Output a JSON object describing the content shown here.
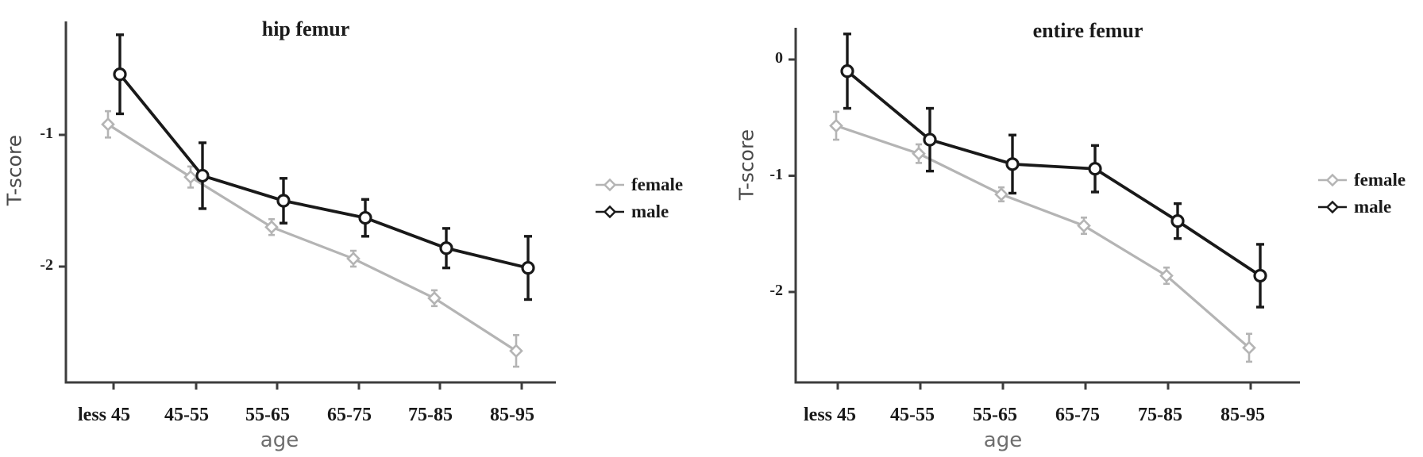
{
  "chart_data": [
    {
      "type": "line",
      "title": "hip femur",
      "xlabel": "age",
      "ylabel": "T-score",
      "categories": [
        "less 45",
        "45-55",
        "55-65",
        "65-75",
        "75-85",
        "85-95"
      ],
      "y_ticks": [
        {
          "label": "-1",
          "value": -1
        },
        {
          "label": "-2",
          "value": -2
        }
      ],
      "ylim": [
        -2.9,
        -0.1
      ],
      "grid": false,
      "legend_position": "right",
      "legend": [
        "female",
        "male"
      ],
      "error_bars": true,
      "series": [
        {
          "name": "female",
          "color": "#b4b4b4",
          "marker": "diamond",
          "values": [
            -0.92,
            -1.32,
            -1.7,
            -1.94,
            -2.24,
            -2.64
          ],
          "errors": [
            0.1,
            0.08,
            0.06,
            0.06,
            0.06,
            0.12
          ]
        },
        {
          "name": "male",
          "color": "#191919",
          "marker": "circle",
          "values": [
            -0.54,
            -1.31,
            -1.5,
            -1.63,
            -1.86,
            -2.01
          ],
          "errors": [
            0.3,
            0.25,
            0.17,
            0.14,
            0.15,
            0.24
          ]
        }
      ]
    },
    {
      "type": "line",
      "title": "entire femur",
      "xlabel": "age",
      "ylabel": "T-score",
      "categories": [
        "less 45",
        "45-55",
        "55-65",
        "65-75",
        "75-85",
        "85-95"
      ],
      "y_ticks": [
        {
          "label": "0",
          "value": 0
        },
        {
          "label": "-1",
          "value": -1
        },
        {
          "label": "-2",
          "value": -2
        }
      ],
      "ylim": [
        -2.8,
        0.45
      ],
      "grid": false,
      "legend_position": "right",
      "legend": [
        "female",
        "male"
      ],
      "error_bars": true,
      "series": [
        {
          "name": "female",
          "color": "#b4b4b4",
          "marker": "diamond",
          "values": [
            -0.57,
            -0.81,
            -1.16,
            -1.43,
            -1.86,
            -2.48
          ],
          "errors": [
            0.12,
            0.08,
            0.06,
            0.07,
            0.07,
            0.12
          ]
        },
        {
          "name": "male",
          "color": "#191919",
          "marker": "circle",
          "values": [
            -0.1,
            -0.69,
            -0.9,
            -0.94,
            -1.39,
            -1.86
          ],
          "errors": [
            0.32,
            0.27,
            0.25,
            0.2,
            0.15,
            0.27
          ]
        }
      ]
    }
  ]
}
